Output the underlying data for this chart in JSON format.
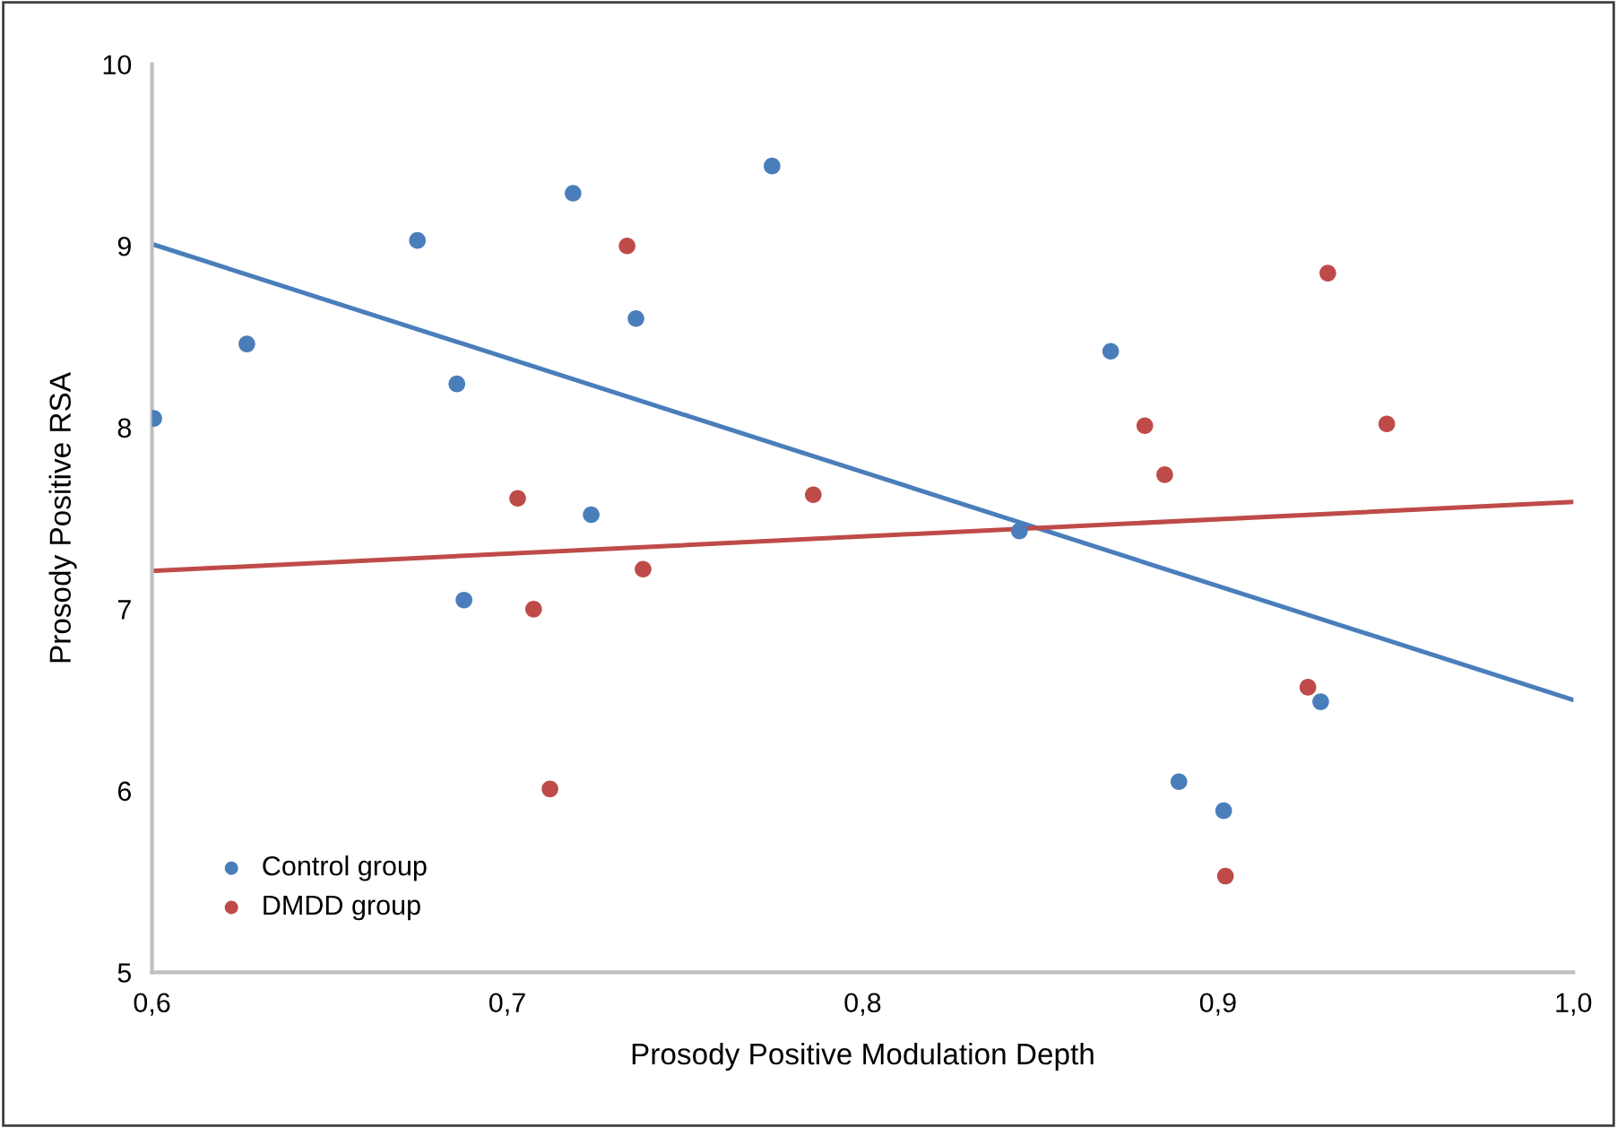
{
  "chart_data": {
    "type": "scatter",
    "xlabel": "Prosody Positive Modulation Depth",
    "ylabel": "Prosody Positive RSA",
    "xlim": [
      0.6,
      1.0
    ],
    "ylim": [
      5,
      10
    ],
    "xticks": [
      {
        "value": 0.6,
        "label": "0,6"
      },
      {
        "value": 0.7,
        "label": "0,7"
      },
      {
        "value": 0.8,
        "label": "0,8"
      },
      {
        "value": 0.9,
        "label": "0,9"
      },
      {
        "value": 1.0,
        "label": "1,0"
      }
    ],
    "yticks": [
      5,
      6,
      7,
      8,
      9,
      10
    ],
    "grid": false,
    "legend": "bottom left",
    "marker": "circle",
    "series": [
      {
        "name": "Control group",
        "color": "#4a7ebb",
        "x": [
          0.6005,
          0.6267,
          0.6747,
          0.6858,
          0.6878,
          0.7185,
          0.7236,
          0.7362,
          0.7745,
          0.8441,
          0.8698,
          0.889,
          0.9016,
          0.9289
        ],
        "values": [
          8.05,
          8.46,
          9.03,
          8.24,
          7.05,
          9.29,
          7.52,
          8.6,
          9.44,
          7.43,
          8.42,
          6.05,
          5.89,
          6.49
        ]
      },
      {
        "name": "DMDD group",
        "color": "#be4b48",
        "x": [
          0.7029,
          0.7074,
          0.712,
          0.7337,
          0.7382,
          0.7861,
          0.8794,
          0.885,
          0.9021,
          0.9253,
          0.9309,
          0.9475
        ],
        "values": [
          7.61,
          7.0,
          6.01,
          9.0,
          7.22,
          7.63,
          8.01,
          7.74,
          5.53,
          6.57,
          8.85,
          8.02
        ]
      },
      {
        "type": "line",
        "color": "#4a7ebb",
        "marker": "none",
        "x": [
          0.6,
          1.0
        ],
        "values": [
          9.01,
          6.5
        ]
      },
      {
        "type": "line",
        "color": "#be4b48",
        "marker": "none",
        "x": [
          0.6,
          1.0
        ],
        "values": [
          7.21,
          7.59
        ]
      }
    ]
  }
}
